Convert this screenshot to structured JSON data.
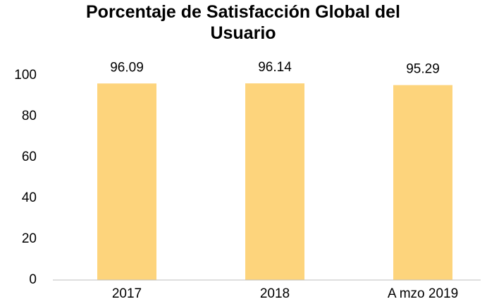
{
  "chart_data": {
    "type": "bar",
    "title": "Porcentaje de Satisfacción Global del Usuario",
    "categories": [
      "2017",
      "2018",
      "A mzo 2019"
    ],
    "values": [
      96.09,
      96.14,
      95.29
    ],
    "color": "#fdd47c",
    "ylim": [
      0,
      100
    ],
    "yticks": [
      0,
      20,
      40,
      60,
      80,
      100
    ],
    "grid": false
  }
}
